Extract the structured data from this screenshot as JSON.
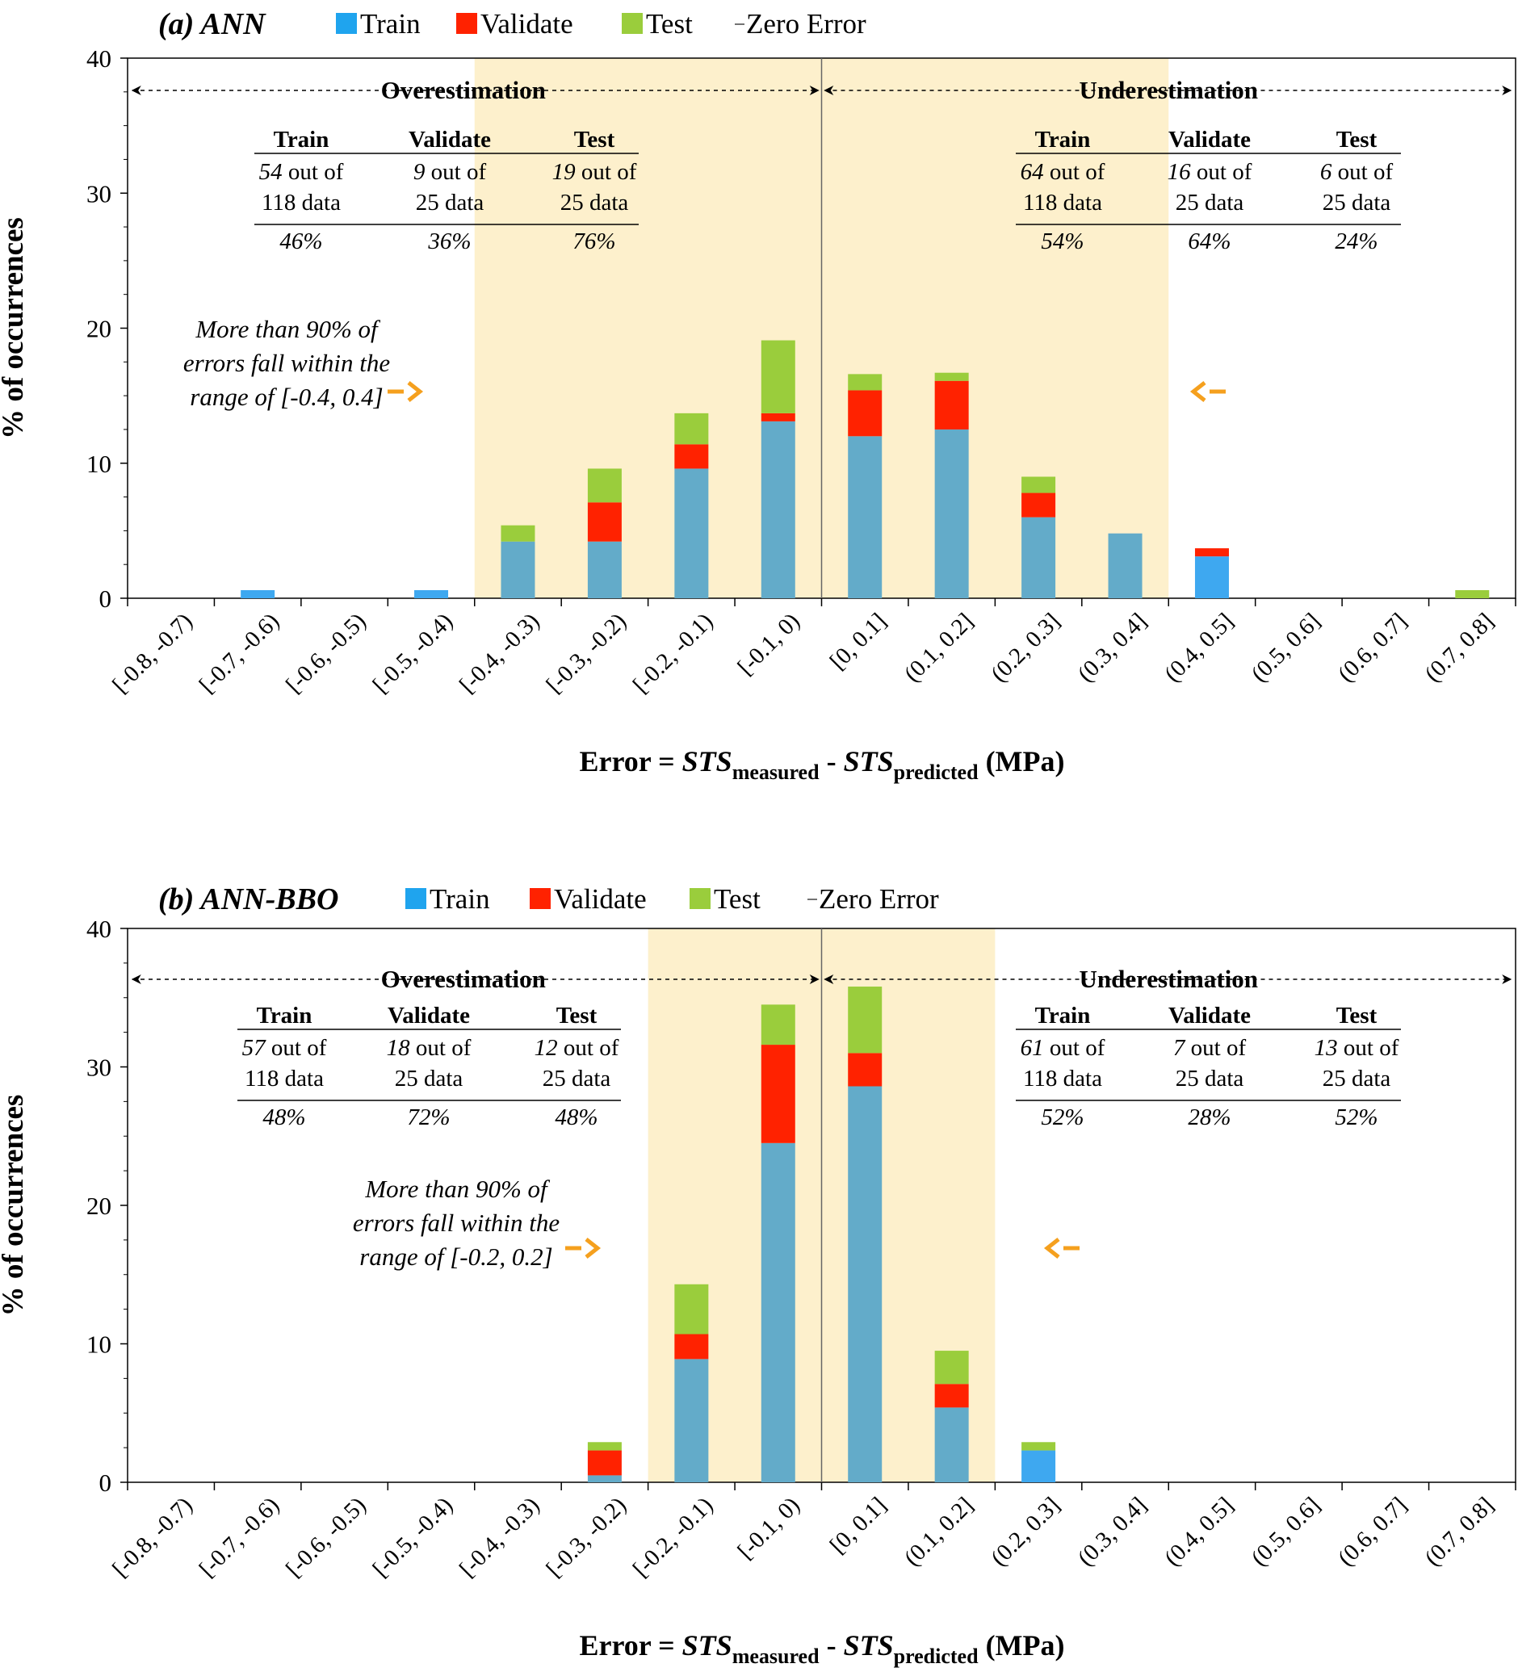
{
  "colors": {
    "train_bar": "#63abc9",
    "train_legend": "#1fa4ee",
    "train_highlight": "#3ea8f0",
    "validate": "#ff2200",
    "test": "#9acd3c",
    "shade": "#fdf0cc",
    "arrow": "#f5a01e"
  },
  "legend": {
    "train": "Train",
    "validate": "Validate",
    "test": "Test",
    "zero": "Zero Error"
  },
  "axis": {
    "ylabel": "% of occurrences",
    "xlabel_prefix": "Error = ",
    "sts": "STS",
    "measured": "measured",
    "minus": " - ",
    "predicted": "predicted",
    "unit": " (MPa)"
  },
  "regions": {
    "over": "Overestimation",
    "under": "Underestimation"
  },
  "chart_data": [
    {
      "type": "bar",
      "stacked": true,
      "title": "(a) ANN",
      "ylabel": "% of occurrences",
      "xlabel": "Error = STSmeasured - STSpredicted (MPa)",
      "ylim": [
        0,
        40
      ],
      "yticks": [
        "0",
        "10",
        "20",
        "30",
        "40"
      ],
      "categories": [
        "[-0.8, -0.7)",
        "[-0.7, -0.6)",
        "[-0.6, -0.5)",
        "[-0.5, -0.4)",
        "[-0.4, -0.3)",
        "[-0.3, -0.2)",
        "[-0.2, -0.1)",
        "[-0.1, 0)",
        "[0, 0.1]",
        "(0.1, 0.2]",
        "(0.2, 0.3]",
        "(0.3, 0.4]",
        "(0.4, 0.5]",
        "(0.5, 0.6]",
        "(0.6, 0.7]",
        "(0.7, 0.8]"
      ],
      "series": [
        {
          "name": "Train",
          "values": [
            0,
            0.6,
            0,
            0.6,
            4.2,
            4.2,
            9.6,
            13.1,
            12.0,
            12.5,
            6.0,
            4.8,
            3.1,
            0,
            0,
            0
          ]
        },
        {
          "name": "Validate",
          "values": [
            0,
            0,
            0,
            0,
            0,
            2.9,
            1.8,
            0.6,
            3.4,
            3.6,
            1.8,
            0,
            0.6,
            0,
            0,
            0
          ]
        },
        {
          "name": "Test",
          "values": [
            0,
            0,
            0,
            0,
            1.2,
            2.5,
            2.3,
            5.4,
            1.2,
            0.6,
            1.2,
            0,
            0,
            0,
            0,
            0.6
          ]
        }
      ],
      "train_highlight_index": [
        1,
        3,
        12
      ],
      "shade_range": [
        4,
        12
      ],
      "annotation": {
        "lines": [
          "More than 90% of",
          "errors fall within the",
          "range of [-0.4, 0.4]"
        ]
      },
      "table_over": {
        "headers": [
          "Train",
          "Validate",
          "Test"
        ],
        "counts": [
          "54",
          "9",
          "19"
        ],
        "out_of": " out of",
        "totals": [
          "118 data",
          "25 data",
          "25 data"
        ],
        "pct": [
          "46%",
          "36%",
          "76%"
        ]
      },
      "table_under": {
        "headers": [
          "Train",
          "Validate",
          "Test"
        ],
        "counts": [
          "64",
          "16",
          "6"
        ],
        "out_of": " out of",
        "totals": [
          "118 data",
          "25 data",
          "25 data"
        ],
        "pct": [
          "54%",
          "64%",
          "24%"
        ]
      }
    },
    {
      "type": "bar",
      "stacked": true,
      "title": "(b) ANN-BBO",
      "ylabel": "% of occurrences",
      "xlabel": "Error = STSmeasured - STSpredicted (MPa)",
      "ylim": [
        0,
        40
      ],
      "yticks": [
        "0",
        "10",
        "20",
        "30",
        "40"
      ],
      "categories": [
        "[-0.8, -0.7)",
        "[-0.7, -0.6)",
        "[-0.6, -0.5)",
        "[-0.5, -0.4)",
        "[-0.4, -0.3)",
        "[-0.3, -0.2)",
        "[-0.2, -0.1)",
        "[-0.1, 0)",
        "[0, 0.1]",
        "(0.1, 0.2]",
        "(0.2, 0.3]",
        "(0.3, 0.4]",
        "(0.4, 0.5]",
        "(0.5, 0.6]",
        "(0.6, 0.7]",
        "(0.7, 0.8]"
      ],
      "series": [
        {
          "name": "Train",
          "values": [
            0,
            0,
            0,
            0,
            0,
            0.5,
            8.9,
            24.5,
            28.6,
            5.4,
            2.3,
            0,
            0,
            0,
            0,
            0
          ]
        },
        {
          "name": "Validate",
          "values": [
            0,
            0,
            0,
            0,
            0,
            1.8,
            1.8,
            7.1,
            2.4,
            1.7,
            0,
            0,
            0,
            0,
            0,
            0
          ]
        },
        {
          "name": "Test",
          "values": [
            0,
            0,
            0,
            0,
            0,
            0.6,
            3.6,
            2.9,
            4.8,
            2.4,
            0.6,
            0,
            0,
            0,
            0,
            0
          ]
        }
      ],
      "train_highlight_index": [
        10
      ],
      "shade_range": [
        6,
        10
      ],
      "annotation": {
        "lines": [
          "More than 90% of",
          "errors fall within the",
          "range of [-0.2, 0.2]"
        ]
      },
      "table_over": {
        "headers": [
          "Train",
          "Validate",
          "Test"
        ],
        "counts": [
          "57",
          "18",
          "12"
        ],
        "out_of": " out of",
        "totals": [
          "118 data",
          "25 data",
          "25 data"
        ],
        "pct": [
          "48%",
          "72%",
          "48%"
        ]
      },
      "table_under": {
        "headers": [
          "Train",
          "Validate",
          "Test"
        ],
        "counts": [
          "61",
          "7",
          "13"
        ],
        "out_of": " out of",
        "totals": [
          "118 data",
          "25 data",
          "25 data"
        ],
        "pct": [
          "52%",
          "28%",
          "52%"
        ]
      }
    }
  ]
}
